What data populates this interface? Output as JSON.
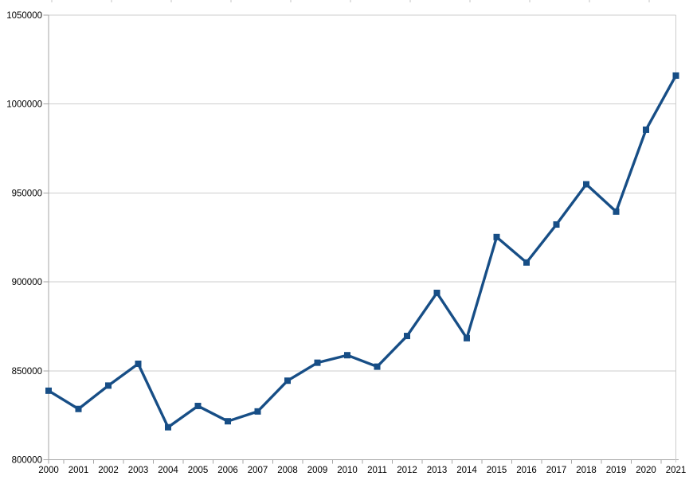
{
  "chart_data": {
    "type": "line",
    "title": "",
    "xlabel": "",
    "ylabel": "",
    "legend": "none",
    "grid": "horizontal",
    "marker": "square",
    "categories": [
      "2000",
      "2001",
      "2002",
      "2003",
      "2004",
      "2005",
      "2006",
      "2007",
      "2008",
      "2009",
      "2010",
      "2011",
      "2012",
      "2013",
      "2014",
      "2015",
      "2016",
      "2017",
      "2018",
      "2019",
      "2020",
      "2021"
    ],
    "series": [
      {
        "name": "",
        "values": [
          838797,
          828541,
          841686,
          853946,
          818271,
          830227,
          821627,
          827155,
          844439,
          854544,
          858768,
          852328,
          869582,
          893825,
          868356,
          925200,
          910902,
          932263,
          954874,
          939520,
          985572,
          1016000
        ]
      }
    ],
    "ylim": [
      800000,
      1050000
    ],
    "ytick_step": 50000,
    "ytick_labels": [
      "800000",
      "850000",
      "900000",
      "950000",
      "1000000",
      "1050000"
    ],
    "colors": {
      "series": "#174e86",
      "axis_line": "#a6a6a6",
      "gridline": "#cdcdcd",
      "tick_label": "#000000",
      "background": "#ffffff",
      "top_edge_artifact": "#c6c6c6"
    }
  }
}
